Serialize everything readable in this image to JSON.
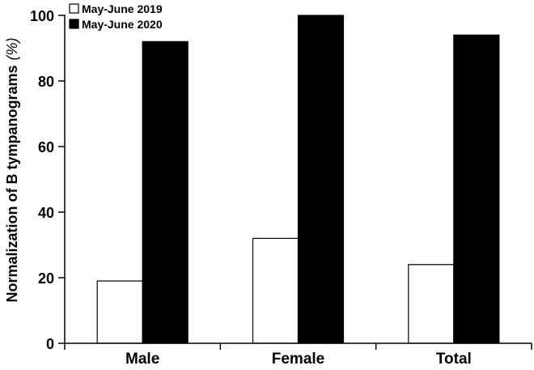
{
  "chart_data": {
    "type": "bar",
    "title": "",
    "xlabel": "",
    "ylabel": "Normalization of B tympanograms",
    "ylabel_unit": "(%)",
    "categories": [
      "Male",
      "Female",
      "Total"
    ],
    "series": [
      {
        "name": "May-June 2019",
        "values": [
          19,
          32,
          24
        ],
        "color": "#ffffff"
      },
      {
        "name": "May-June 2020",
        "values": [
          92,
          100,
          94
        ],
        "color": "#000000"
      }
    ],
    "ylim": [
      0,
      100
    ],
    "yticks": [
      0,
      20,
      40,
      60,
      80,
      100
    ],
    "grid": false,
    "legend_position": "top-left"
  }
}
